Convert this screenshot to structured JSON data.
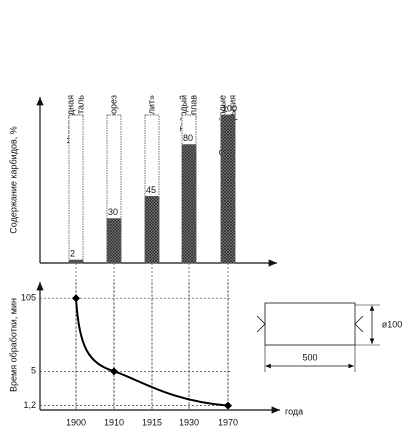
{
  "chart_data": [
    {
      "type": "bar",
      "y_label": "Содержание карбидов, %",
      "categories": [
        [
          "Углеродная",
          "сталь"
        ],
        [
          "Быстрорез"
        ],
        [
          "«Стеллит»"
        ],
        [
          "Твёрдый",
          "сплав"
        ],
        [
          "Сверхтвёрдые",
          "покрытия"
        ]
      ],
      "values": [
        2,
        30,
        45,
        80,
        100
      ],
      "ylim": [
        0,
        100
      ],
      "color": "#555"
    },
    {
      "type": "line",
      "y_label": "Время обработки, мин",
      "x_label": "года",
      "categories": [
        "1900",
        "1910",
        "1915",
        "1930",
        "1970"
      ],
      "series": [
        {
          "x": [
            "1900",
            "1910",
            "1970"
          ],
          "values": [
            105,
            5,
            1.2
          ],
          "color": "#000"
        }
      ],
      "ylim": [
        1,
        120
      ],
      "log_scale": true,
      "yticks": [
        105,
        5,
        {
          "value": 1.2,
          "label": "1,2"
        }
      ]
    }
  ],
  "diagram": {
    "diameter_label": "ø100",
    "length_label": "500"
  }
}
